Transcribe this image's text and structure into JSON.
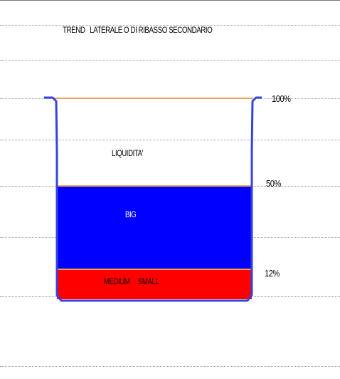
{
  "title": "TREND   LATERALE O DI RIBASSO SECONDARIO",
  "levels": {
    "top": "100%",
    "mid": "50%",
    "low": "12%"
  },
  "segments": {
    "liquidity": {
      "label": "LIQUIDITA'",
      "color": "#ffffff"
    },
    "big": {
      "label": "BIG",
      "color": "#0000ff"
    },
    "medium_small": {
      "label": "MEDIUM     SMALL",
      "color": "#ff0000"
    }
  },
  "colors": {
    "beaker_outline": "#3344dd",
    "level_line": "#f0a050"
  }
}
